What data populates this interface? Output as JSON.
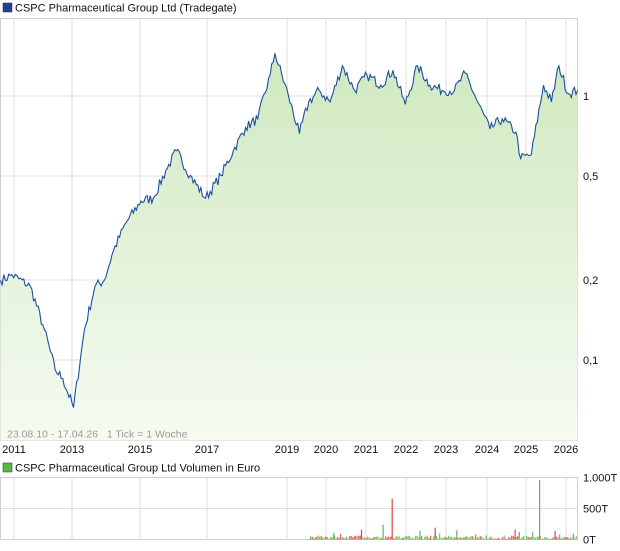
{
  "price_chart": {
    "title": "CSPC Pharmaceutical Group Ltd (Tradegate)",
    "info": "23.08.10 - 17.04.26   1 Tick = 1 Woche",
    "x_labels": [
      "2011",
      "2013",
      "2015",
      "2017",
      "2019",
      "2020",
      "2021",
      "2022",
      "2023",
      "2024",
      "2025",
      "2026"
    ],
    "y_labels": [
      "1",
      "0,5",
      "0,2",
      "0,1"
    ],
    "colors": {
      "line": "#1c4fa0",
      "fill_top": "#cfe9bf",
      "fill_bottom": "#f6fbf2",
      "grid": "#dddddd",
      "legend_square": "#1f3f8f"
    }
  },
  "volume_chart": {
    "title": "CSPC Pharmaceutical Group Ltd Volumen in Euro",
    "y_labels": [
      "1.000T",
      "500T",
      "0T"
    ],
    "colors": {
      "up": "#55bb44",
      "down": "#dd4444",
      "legend_square": "#55bb44"
    }
  },
  "chart_data": [
    {
      "type": "area",
      "title": "CSPC Pharmaceutical Group Ltd (Tradegate)",
      "xlabel": "",
      "ylabel": "",
      "y_scale": "log",
      "ylim": [
        0.05,
        1.7
      ],
      "x": [
        "2010-08-23",
        "2010-12-15",
        "2011-06-15",
        "2011-11-01",
        "2012-02-15",
        "2012-05-01",
        "2012-08-15",
        "2012-12-01",
        "2013-03-15",
        "2013-06-15",
        "2013-09-15",
        "2014-01-15",
        "2014-06-15",
        "2014-10-15",
        "2015-02-15",
        "2015-06-01",
        "2015-10-15",
        "2016-03-15",
        "2016-08-15",
        "2016-12-15",
        "2017-04-15",
        "2017-08-15",
        "2017-12-15",
        "2018-02-01",
        "2018-06-15",
        "2018-10-01",
        "2019-01-01",
        "2019-04-15",
        "2019-08-01",
        "2019-12-01",
        "2020-04-01",
        "2020-08-01",
        "2020-12-15",
        "2021-04-15",
        "2021-08-15",
        "2021-12-15",
        "2022-04-15",
        "2022-08-15",
        "2022-12-15",
        "2023-04-01",
        "2023-08-01",
        "2023-12-01",
        "2024-04-01",
        "2024-08-15",
        "2024-10-01",
        "2025-01-15",
        "2025-05-15",
        "2025-08-01",
        "2025-10-15",
        "2026-01-15",
        "2026-04-17"
      ],
      "y": [
        0.2,
        0.21,
        0.19,
        0.13,
        0.092,
        0.085,
        0.066,
        0.13,
        0.19,
        0.2,
        0.26,
        0.33,
        0.4,
        0.41,
        0.52,
        0.62,
        0.5,
        0.41,
        0.5,
        0.62,
        0.76,
        0.82,
        1.2,
        1.45,
        1.0,
        0.72,
        0.95,
        1.05,
        0.95,
        1.3,
        1.05,
        1.2,
        1.1,
        1.25,
        0.93,
        1.3,
        1.1,
        1.05,
        1.05,
        1.22,
        0.95,
        0.75,
        0.82,
        0.73,
        0.58,
        0.6,
        1.1,
        0.95,
        1.3,
        1.02,
        1.05
      ]
    },
    {
      "type": "bar",
      "title": "CSPC Pharmaceutical Group Ltd Volumen in Euro",
      "xlabel": "",
      "ylabel": "",
      "ylim": [
        0,
        1000
      ],
      "series": [
        {
          "name": "",
          "x": [
            "2019-09-01",
            "2020-06-01",
            "2021-01-01",
            "2021-04-01",
            "2022-01-01",
            "2022-06-01",
            "2023-01-01",
            "2024-08-01",
            "2025-04-01",
            "2025-09-01"
          ],
          "values": [
            110,
            160,
            240,
            660,
            140,
            190,
            150,
            160,
            960,
            140
          ]
        }
      ]
    }
  ]
}
